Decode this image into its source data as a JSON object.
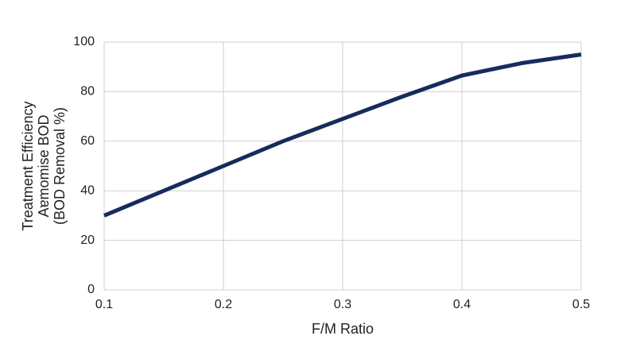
{
  "chart_data": {
    "type": "line",
    "x_label": "F/M Ratio",
    "y_label": [
      "Treatment Efficiency",
      "Aɐmomise BOD",
      "(BOD Removal %)"
    ],
    "x": [
      0.1,
      0.15,
      0.2,
      0.25,
      0.3,
      0.35,
      0.4,
      0.45,
      0.5
    ],
    "series": [
      {
        "color": "#172b5c",
        "values": [
          30,
          40,
          50,
          60,
          69,
          78,
          86.5,
          91.5,
          95
        ]
      }
    ],
    "xlim": [
      0.1,
      0.5
    ],
    "xticks": [
      0.1,
      0.2,
      0.3,
      0.4,
      0.5
    ],
    "ylim": [
      0,
      100
    ],
    "yticks": [
      0,
      20,
      40,
      60,
      80,
      100
    ],
    "grid": true
  }
}
